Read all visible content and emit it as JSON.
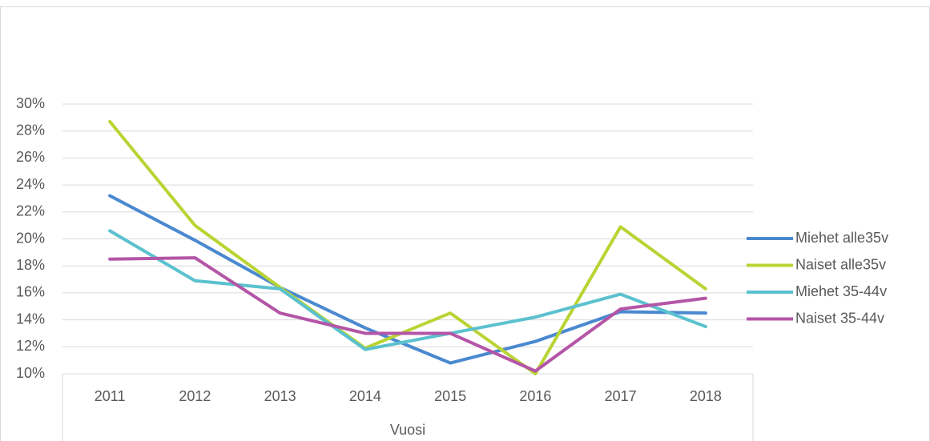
{
  "chart_data": {
    "type": "line",
    "x_label": "Vuosi",
    "categories": [
      "2011",
      "2012",
      "2013",
      "2014",
      "2015",
      "2016",
      "2017",
      "2018"
    ],
    "series": [
      {
        "name": "Miehet alle35v",
        "color": "#4a89d0",
        "values": [
          23.2,
          19.9,
          16.4,
          13.4,
          10.8,
          12.4,
          14.6,
          14.5
        ]
      },
      {
        "name": "Naiset alle35v",
        "color": "#b9d433",
        "values": [
          28.7,
          21.0,
          16.4,
          11.9,
          14.5,
          10.0,
          20.9,
          16.3
        ]
      },
      {
        "name": "Miehet 35-44v",
        "color": "#5bc1cf",
        "values": [
          20.6,
          16.9,
          16.3,
          11.8,
          13.0,
          14.2,
          15.9,
          13.5
        ]
      },
      {
        "name": "Naiset 35-44v",
        "color": "#b455a7",
        "values": [
          18.5,
          18.6,
          14.5,
          13.0,
          13.0,
          10.2,
          14.8,
          15.6
        ]
      }
    ],
    "ylim": [
      10,
      30
    ],
    "yticks": [
      {
        "value": 10,
        "label": "10%"
      },
      {
        "value": 12,
        "label": "12%"
      },
      {
        "value": 14,
        "label": "14%"
      },
      {
        "value": 16,
        "label": "16%"
      },
      {
        "value": 18,
        "label": "18%"
      },
      {
        "value": 20,
        "label": "20%"
      },
      {
        "value": 22,
        "label": "22%"
      },
      {
        "value": 24,
        "label": "24%"
      },
      {
        "value": 26,
        "label": "26%"
      },
      {
        "value": 28,
        "label": "28%"
      },
      {
        "value": 30,
        "label": "30%"
      }
    ],
    "grid": true,
    "legend": "right"
  }
}
